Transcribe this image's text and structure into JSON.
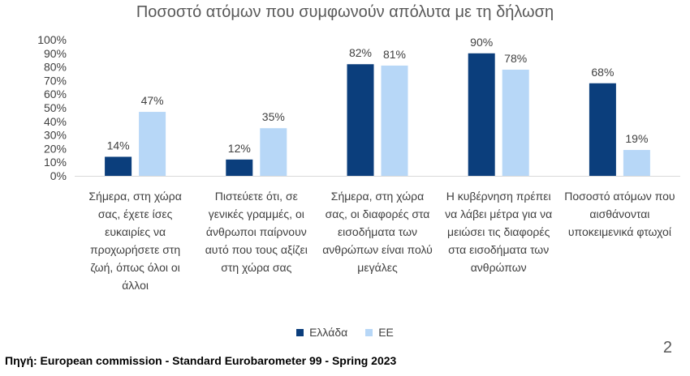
{
  "chart_data": {
    "type": "bar",
    "title": "Ποσοστό ατόμων που συμφωνούν απόλυτα με τη δήλωση",
    "categories": [
      "Σήμερα, στη χώρα σας, έχετε ίσες ευκαιρίες να προχωρήσετε στη ζωή, όπως όλοι οι άλλοι",
      "Πιστεύετε ότι, σε γενικές γραμμές, οι άνθρωποι παίρνουν αυτό που τους αξίζει στη χώρα σας",
      "Σήμερα, στη χώρα σας, οι διαφορές στα εισοδήματα των ανθρώπων είναι πολύ μεγάλες",
      "Η κυβέρνηση πρέπει να λάβει μέτρα για να μειώσει τις διαφορές στα εισοδήματα των ανθρώπων",
      "Ποσοστό ατόμων που αισθάνονται υποκειμενικά φτωχοί"
    ],
    "series": [
      {
        "name": "Ελλάδα",
        "color": "#0b3e7c",
        "values": [
          14,
          12,
          82,
          90,
          68
        ],
        "labels": [
          "14%",
          "12%",
          "82%",
          "90%",
          "68%"
        ]
      },
      {
        "name": "ΕΕ",
        "color": "#b7d7f7",
        "values": [
          47,
          35,
          81,
          78,
          19
        ],
        "labels": [
          "47%",
          "35%",
          "81%",
          "78%",
          "19%"
        ]
      }
    ],
    "ylim": [
      0,
      100
    ],
    "yticks": [
      "0%",
      "10%",
      "20%",
      "30%",
      "40%",
      "50%",
      "60%",
      "70%",
      "80%",
      "90%",
      "100%"
    ],
    "grid": false,
    "legend": "bottom"
  },
  "page_number": "2",
  "source": "Πηγή: European commission - Standard Eurobarometer 99 - Spring 2023"
}
